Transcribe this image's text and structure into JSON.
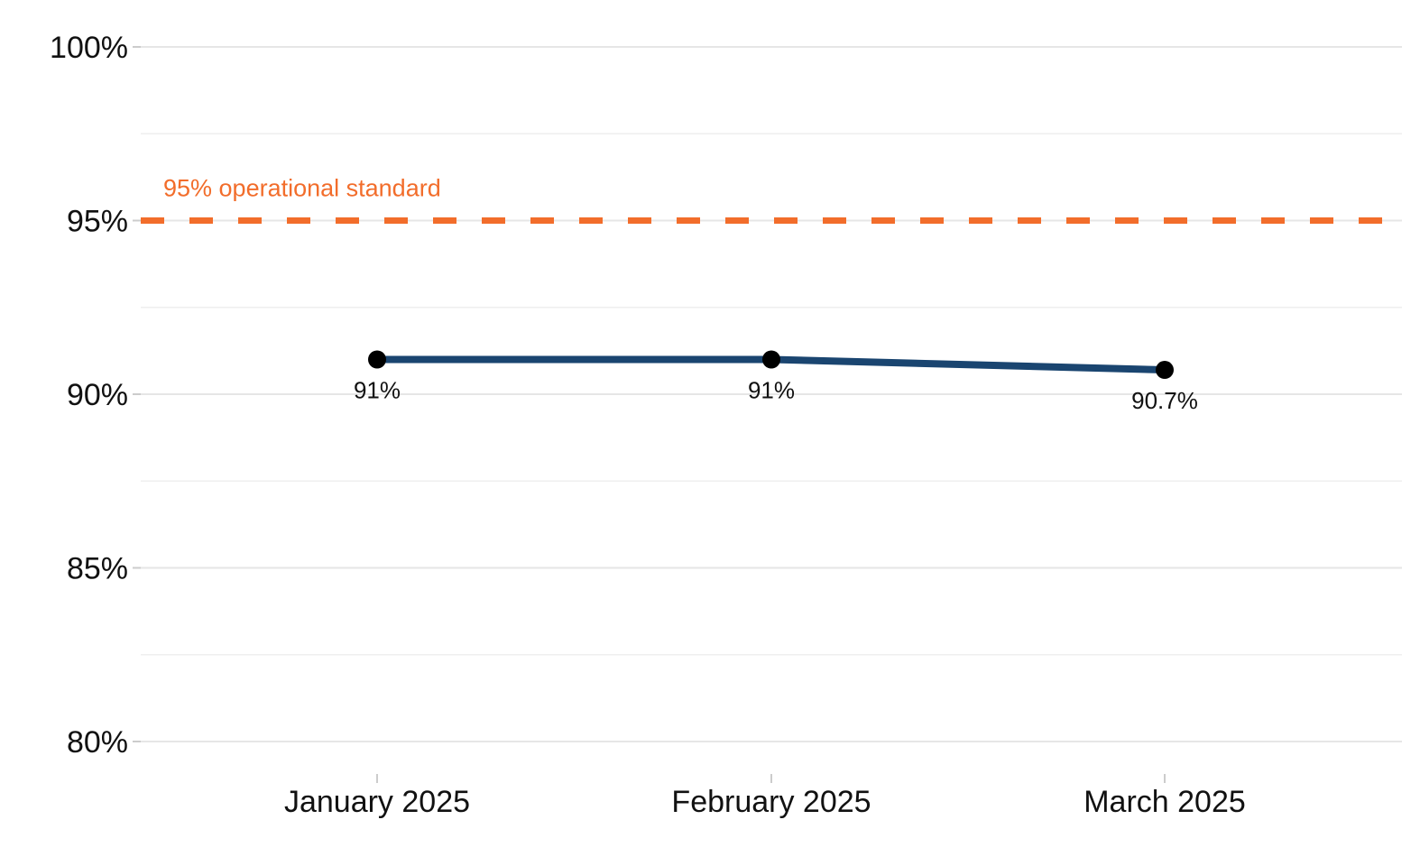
{
  "chart_data": {
    "type": "line",
    "title": "",
    "xlabel": "",
    "ylabel": "",
    "categories": [
      "January 2025",
      "February 2025",
      "March 2025"
    ],
    "series": [
      {
        "values": [
          91,
          91,
          90.7
        ],
        "data_labels": [
          "91%",
          "91%",
          "90.7%"
        ],
        "color": "#1a4570"
      }
    ],
    "ylim": [
      80,
      100
    ],
    "y_major_ticks": [
      80,
      85,
      90,
      95,
      100
    ],
    "y_tick_labels": [
      "80%",
      "85%",
      "90%",
      "95%",
      "100%"
    ],
    "y_minor_ticks": [
      82.5,
      87.5,
      92.5,
      97.5
    ],
    "grid": true,
    "marker_color": "#000000",
    "reference_line": {
      "value": 95,
      "label": "95% operational standard",
      "color": "#f26d2b",
      "style": "dashed"
    }
  }
}
